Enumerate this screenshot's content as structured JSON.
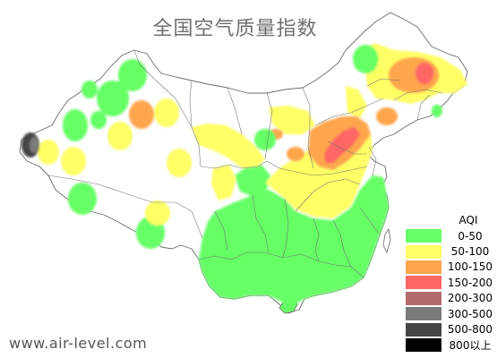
{
  "title": "全国空气质量指数",
  "watermark": "www.air-level.com",
  "legend": {
    "title": "AQI",
    "items": [
      {
        "label": "0-50",
        "color": "#66ff66"
      },
      {
        "label": "50-100",
        "color": "#ffff66"
      },
      {
        "label": "100-150",
        "color": "#ffa64d"
      },
      {
        "label": "150-200",
        "color": "#ff6666"
      },
      {
        "label": "200-300",
        "color": "#b36b6b"
      },
      {
        "label": "300-500",
        "color": "#7a7a7a"
      },
      {
        "label": "500-800",
        "color": "#454545"
      },
      {
        "label": "800以上",
        "color": "#000000"
      }
    ]
  },
  "colors": {
    "background": "#ffffff",
    "land": "#ffffff",
    "border": "#6b6b6b"
  }
}
